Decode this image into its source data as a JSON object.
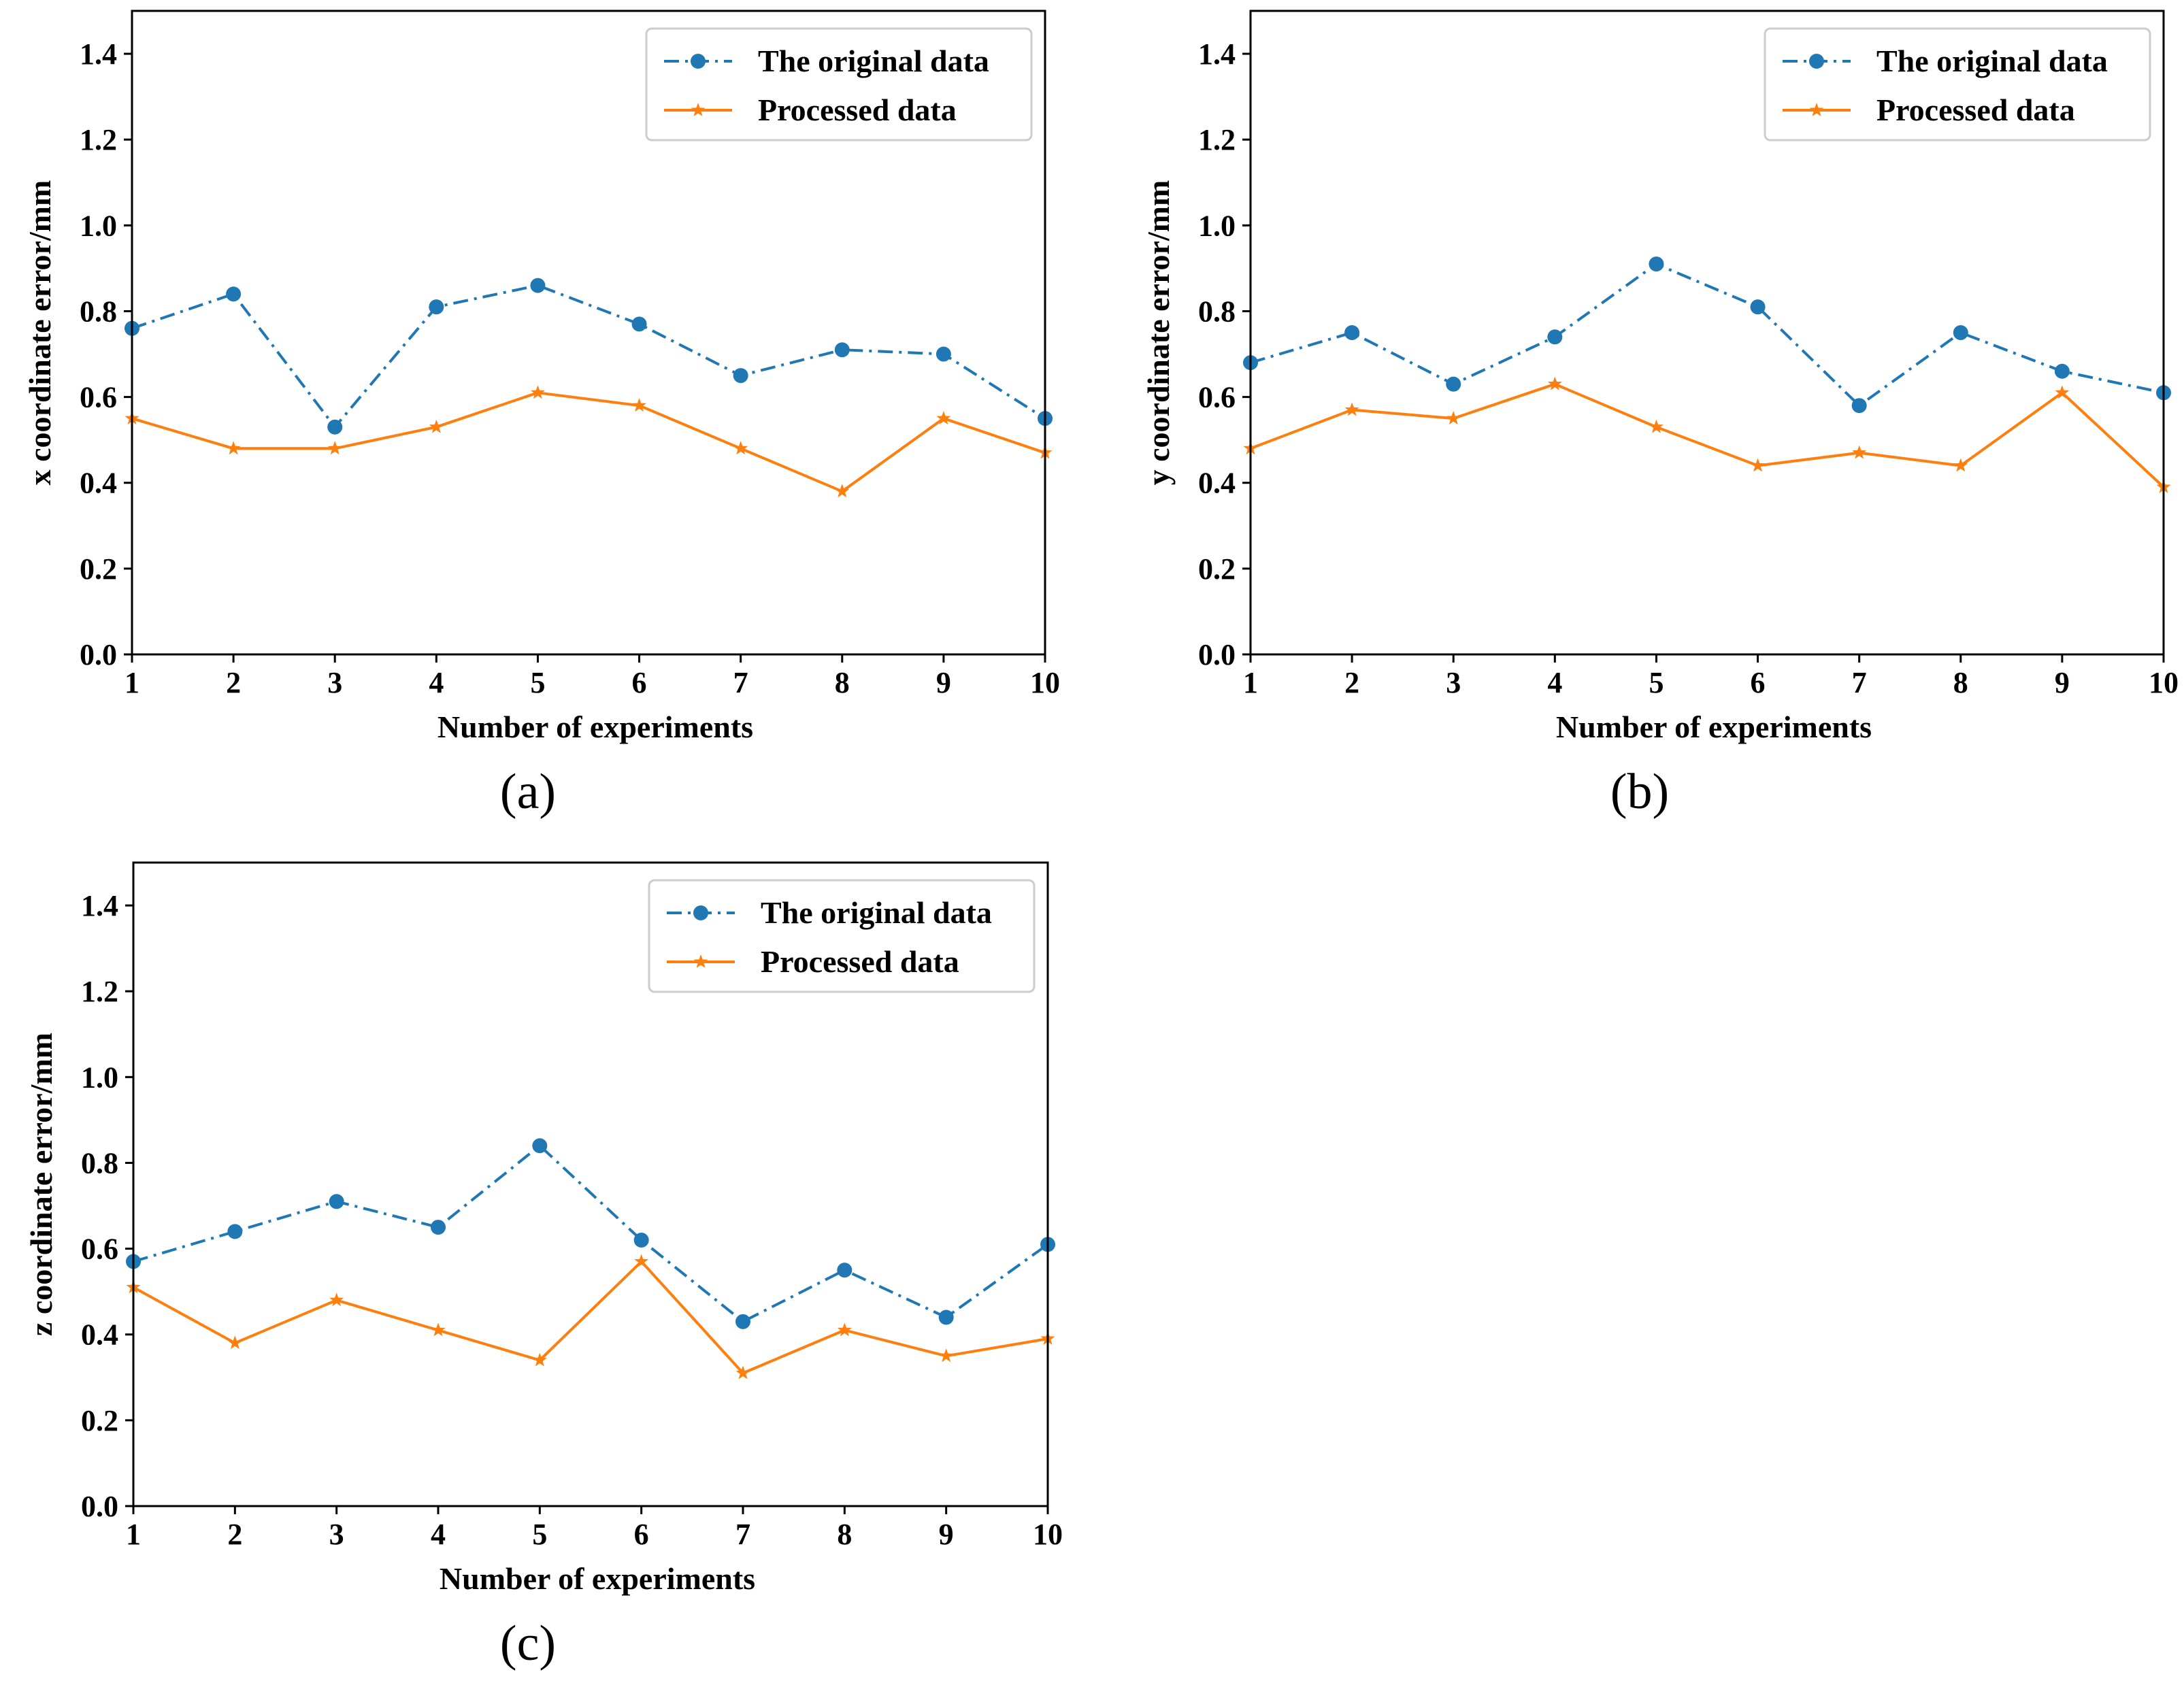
{
  "colors": {
    "original": "#1f77b4",
    "processed": "#ff7f0e",
    "axis": "#000000",
    "legend_border": "#cccccc"
  },
  "legend": {
    "original_label": "The original data",
    "processed_label": "Processed data"
  },
  "chart_data": [
    {
      "type": "line",
      "panel": "(a)",
      "xlabel": "Number of experiments",
      "ylabel": "x coordinate error/mm",
      "xlim": [
        1,
        10
      ],
      "ylim": [
        0.0,
        1.5
      ],
      "xticks": [
        "1",
        "2",
        "3",
        "4",
        "5",
        "6",
        "7",
        "8",
        "9",
        "10"
      ],
      "yticks": [
        "0.0",
        "0.2",
        "0.4",
        "0.6",
        "0.8",
        "1.0",
        "1.2",
        "1.4"
      ],
      "legend_position": "top-right",
      "grid": false,
      "x": [
        1,
        2,
        3,
        4,
        5,
        6,
        7,
        8,
        9,
        10
      ],
      "series": [
        {
          "name": "The original data",
          "marker": "circle",
          "linestyle": "dash-dot",
          "values": [
            0.76,
            0.84,
            0.53,
            0.81,
            0.86,
            0.77,
            0.65,
            0.71,
            0.7,
            0.55
          ]
        },
        {
          "name": "Processed data",
          "marker": "star",
          "linestyle": "solid",
          "values": [
            0.55,
            0.48,
            0.48,
            0.53,
            0.61,
            0.58,
            0.48,
            0.38,
            0.55,
            0.47
          ]
        }
      ]
    },
    {
      "type": "line",
      "panel": "(b)",
      "xlabel": "Number of experiments",
      "ylabel": "y coordinate error/mm",
      "xlim": [
        1,
        10
      ],
      "ylim": [
        0.0,
        1.5
      ],
      "xticks": [
        "1",
        "2",
        "3",
        "4",
        "5",
        "6",
        "7",
        "8",
        "9",
        "10"
      ],
      "yticks": [
        "0.0",
        "0.2",
        "0.4",
        "0.6",
        "0.8",
        "1.0",
        "1.2",
        "1.4"
      ],
      "legend_position": "top-right",
      "grid": false,
      "x": [
        1,
        2,
        3,
        4,
        5,
        6,
        7,
        8,
        9,
        10
      ],
      "series": [
        {
          "name": "The original data",
          "marker": "circle",
          "linestyle": "dash-dot",
          "values": [
            0.68,
            0.75,
            0.63,
            0.74,
            0.91,
            0.81,
            0.58,
            0.75,
            0.66,
            0.61
          ]
        },
        {
          "name": "Processed data",
          "marker": "star",
          "linestyle": "solid",
          "values": [
            0.48,
            0.57,
            0.55,
            0.63,
            0.53,
            0.44,
            0.47,
            0.44,
            0.61,
            0.39
          ]
        }
      ]
    },
    {
      "type": "line",
      "panel": "(c)",
      "xlabel": "Number of experiments",
      "ylabel": "z coordinate error/mm",
      "xlim": [
        1,
        10
      ],
      "ylim": [
        0.0,
        1.5
      ],
      "xticks": [
        "1",
        "2",
        "3",
        "4",
        "5",
        "6",
        "7",
        "8",
        "9",
        "10"
      ],
      "yticks": [
        "0.0",
        "0.2",
        "0.4",
        "0.6",
        "0.8",
        "1.0",
        "1.2",
        "1.4"
      ],
      "legend_position": "top-right",
      "grid": false,
      "x": [
        1,
        2,
        3,
        4,
        5,
        6,
        7,
        8,
        9,
        10
      ],
      "series": [
        {
          "name": "The original data",
          "marker": "circle",
          "linestyle": "dash-dot",
          "values": [
            0.57,
            0.64,
            0.71,
            0.65,
            0.84,
            0.62,
            0.43,
            0.55,
            0.44,
            0.61
          ]
        },
        {
          "name": "Processed data",
          "marker": "star",
          "linestyle": "solid",
          "values": [
            0.51,
            0.38,
            0.48,
            0.41,
            0.34,
            0.57,
            0.31,
            0.41,
            0.35,
            0.39
          ]
        }
      ]
    }
  ]
}
